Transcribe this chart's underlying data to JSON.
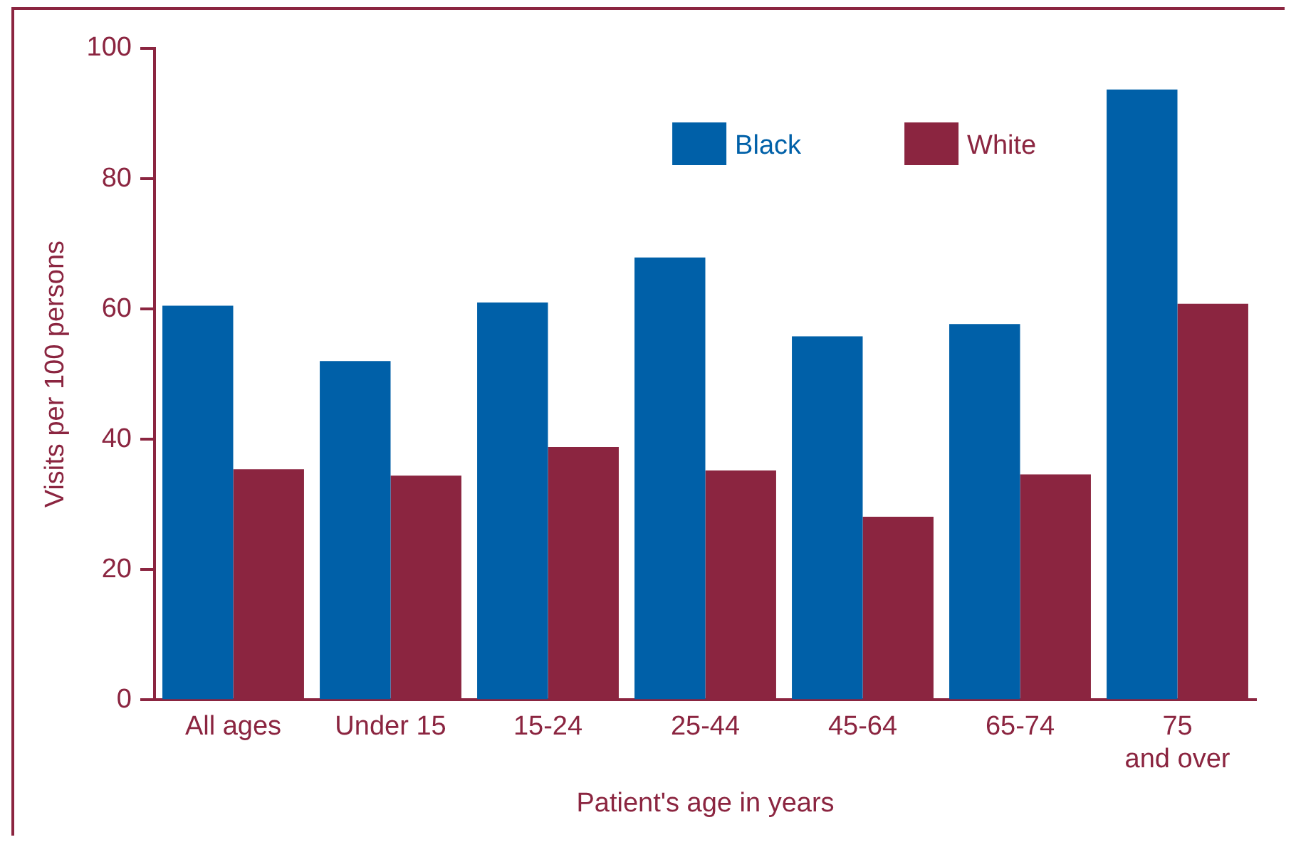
{
  "chart_data": {
    "type": "bar",
    "xlabel": "Patient's age in years",
    "ylabel": "Visits per 100 persons",
    "categories": [
      "All ages",
      "Under 15",
      "15-24",
      "25-44",
      "45-64",
      "65-74",
      "75\nand over"
    ],
    "series": [
      {
        "name": "Black",
        "color": "#0060a8",
        "values": [
          60.5,
          52,
          61,
          67.9,
          55.8,
          57.7,
          93.7
        ]
      },
      {
        "name": "White",
        "color": "#8b2540",
        "values": [
          35.4,
          34.4,
          38.8,
          35.2,
          28.1,
          34.6,
          60.8
        ]
      }
    ],
    "ylim": [
      0,
      100
    ],
    "yticks": [
      0,
      20,
      40,
      60,
      80,
      100
    ],
    "grid": false,
    "legend": "top right"
  }
}
